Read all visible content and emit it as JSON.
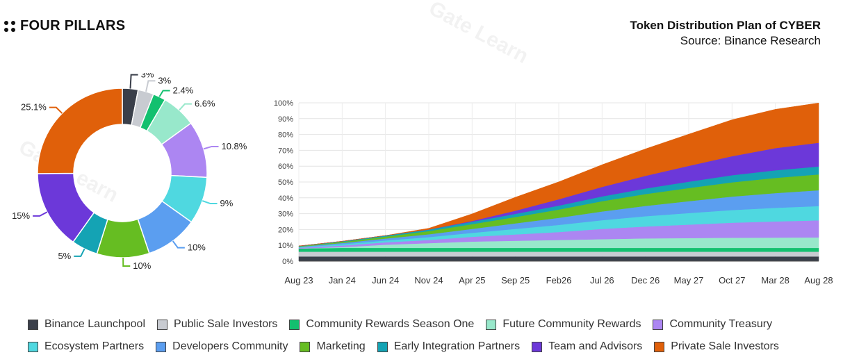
{
  "brand": {
    "name": "FOUR PILLARS",
    "icon": "four-dots-icon"
  },
  "title": {
    "main": "Token Distribution Plan of CYBER",
    "source": "Source: Binance Research"
  },
  "watermark": "Gate Learn",
  "colors": {
    "Binance Launchpool": "#3a3f4a",
    "Public Sale Investors": "#c8cbd1",
    "Community Rewards Season One": "#13c06f",
    "Future Community Rewards": "#98e8cb",
    "Community Treasury": "#ac86f2",
    "Ecosystem Partners": "#4fd8e0",
    "Developers Community": "#5b9ef0",
    "Marketing": "#66bd22",
    "Early Integration Partners": "#14a3b4",
    "Team and Advisors": "#6c38d9",
    "Private Sale Investors": "#e0600a"
  },
  "chart_data": [
    {
      "type": "pie",
      "title": "",
      "categories": [
        "Binance Launchpool",
        "Public Sale Investors",
        "Community Rewards Season One",
        "Future Community Rewards",
        "Community Treasury",
        "Ecosystem Partners",
        "Developers Community",
        "Marketing",
        "Early Integration Partners",
        "Team and Advisors",
        "Private Sale Investors"
      ],
      "values": [
        3,
        3,
        2.4,
        6.6,
        10.8,
        9,
        10,
        10,
        5,
        15,
        25.1
      ],
      "labels": [
        "3%",
        "3%",
        "2.4%",
        "6.6%",
        "10.8%",
        "9%",
        "10%",
        "10%",
        "5%",
        "15%",
        "25.1%"
      ]
    },
    {
      "type": "area",
      "stacked": true,
      "title": "",
      "xlabel": "",
      "ylabel": "",
      "ylim": [
        0,
        100
      ],
      "x_ticks": [
        "Aug 23",
        "Jan 24",
        "Jun 24",
        "Nov 24",
        "Apr 25",
        "Sep 25",
        "Feb26",
        "Jul 26",
        "Dec 26",
        "May 27",
        "Oct 27",
        "Mar 28",
        "Aug 28"
      ],
      "y_ticks": [
        "0%",
        "10%",
        "20%",
        "30%",
        "40%",
        "50%",
        "60%",
        "70%",
        "80%",
        "90%",
        "100%"
      ],
      "series": [
        {
          "name": "Binance Launchpool",
          "values": [
            3,
            3,
            3,
            3,
            3,
            3,
            3,
            3,
            3,
            3,
            3,
            3,
            3
          ]
        },
        {
          "name": "Public Sale Investors",
          "values": [
            3,
            3,
            3,
            3,
            3,
            3,
            3,
            3,
            3,
            3,
            3,
            3,
            3
          ]
        },
        {
          "name": "Community Rewards Season One",
          "values": [
            2,
            2.4,
            2.4,
            2.4,
            2.4,
            2.4,
            2.4,
            2.4,
            2.4,
            2.4,
            2.4,
            2.4,
            2.4
          ]
        },
        {
          "name": "Future Community Rewards",
          "values": [
            0,
            0.5,
            2,
            3,
            4,
            4.5,
            5,
            5.5,
            6,
            6.2,
            6.4,
            6.5,
            6.6
          ]
        },
        {
          "name": "Community Treasury",
          "values": [
            0.5,
            1,
            1.5,
            2,
            3,
            4,
            5,
            6.5,
            7.5,
            8.5,
            9.5,
            10.2,
            10.8
          ]
        },
        {
          "name": "Ecosystem Partners",
          "values": [
            0.3,
            0.8,
            1.2,
            1.8,
            2.5,
            3.5,
            4.5,
            5.5,
            6.5,
            7.3,
            8,
            8.6,
            9
          ]
        },
        {
          "name": "Developers Community",
          "values": [
            0.3,
            0.8,
            1.2,
            1.8,
            2.5,
            3.5,
            4.5,
            5.5,
            6.5,
            7.5,
            8.5,
            9.3,
            10
          ]
        },
        {
          "name": "Marketing",
          "values": [
            0.3,
            0.7,
            1.2,
            2,
            3,
            4,
            5.2,
            6.5,
            7.5,
            8.3,
            9,
            9.6,
            10
          ]
        },
        {
          "name": "Early Integration Partners",
          "values": [
            0.2,
            0.4,
            0.7,
            1,
            1.5,
            2,
            2.5,
            3,
            3.5,
            4,
            4.5,
            4.8,
            5
          ]
        },
        {
          "name": "Team and Advisors",
          "values": [
            0,
            0,
            0,
            0,
            0.5,
            2,
            4,
            6,
            8,
            10,
            12,
            14,
            15
          ]
        },
        {
          "name": "Private Sale Investors",
          "values": [
            0,
            0,
            0,
            0.8,
            4.5,
            8.5,
            11,
            14,
            17,
            20,
            23,
            24.5,
            25.1
          ]
        }
      ]
    }
  ],
  "legend": [
    [
      "Binance Launchpool",
      "Public Sale Investors",
      "Community Rewards Season One",
      "Future Community Rewards",
      "Community Treasury"
    ],
    [
      "Ecosystem Partners",
      "Developers Community",
      "Marketing",
      "Early Integration Partners",
      "Team and Advisors",
      "Private Sale Investors"
    ]
  ]
}
